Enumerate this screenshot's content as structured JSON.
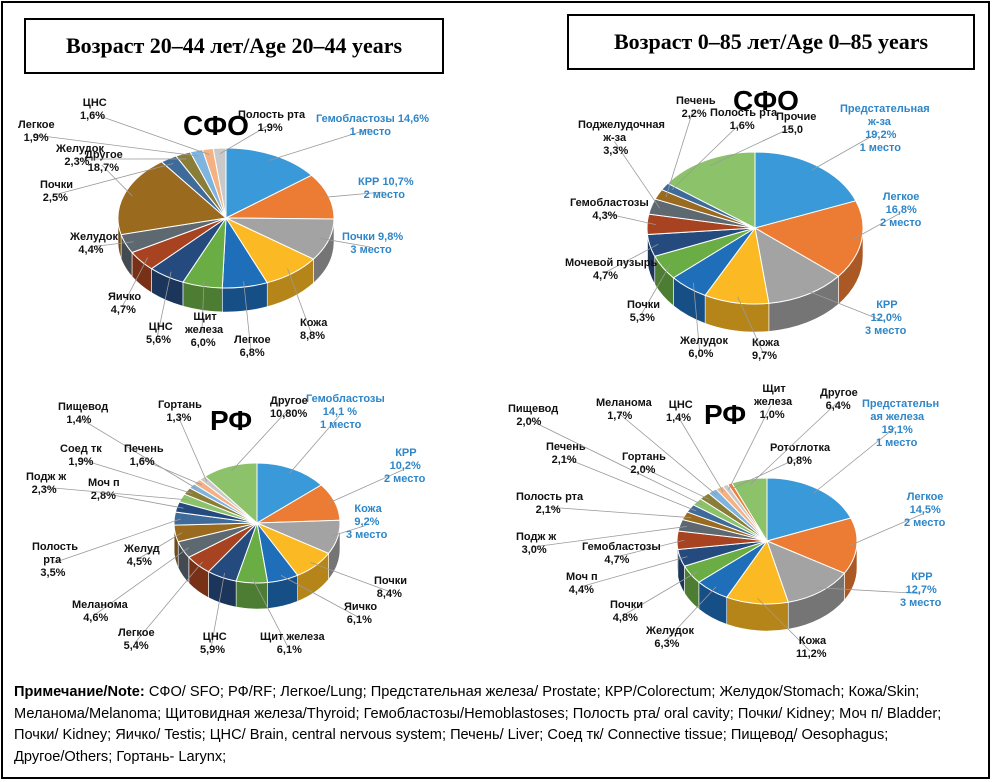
{
  "titles": {
    "left": "Возраст 20–44 лет/Age 20–44 years",
    "right": "Возраст 0–85 лет/Age 0–85 years"
  },
  "note": {
    "label": "Примечание/Note:",
    "text": " СФО/ SFO; РФ/RF; Легкое/Lung;  Предстательная железа/ Prostate; КРР/Colorectum; Желудок/Stomach; Кожа/Skin; Меланома/Melanoma; Щитовидная железа/Thyroid; Гемобластозы/Hemoblastoses; Полость рта/ oral cavity; Почки/ Kidney; Моч п/ Bladder; Почки/ Kidney; Яичко/ Testis; ЦНС/ Brain, central nervous system; Печень/ Liver; Соед тк/ Connective tissue;  Пищевод/ Oesophagus; Другое/Others; Гортань- Larynx;"
  },
  "colors": {
    "blue": "#3a99d8",
    "orange": "#ec7c34",
    "gray": "#a3a3a3",
    "yellow": "#fbb923",
    "darkblue": "#1f6eb9",
    "green": "#6bad45",
    "navy": "#254a7e",
    "brown": "#a74320",
    "slate": "#5d6870",
    "ochre": "#9a6a1f",
    "steel": "#3f6b9a",
    "lightgreen": "#8bc26a",
    "khaki": "#8a7d38",
    "lightblue": "#7fb4de",
    "peach": "#f4b183",
    "lightgray": "#c9c9c9",
    "label_blue": "#2e86c8"
  },
  "chart_data": [
    {
      "type": "pie",
      "title": "СФО",
      "subtitle": "Возраст 20–44 лет/Age 20–44 years",
      "slices": [
        {
          "name": "Гемобластозы",
          "value": 14.6,
          "color": "blue",
          "lines": [
            "Гемобластозы  14,6%",
            "1 место"
          ],
          "highlight": true
        },
        {
          "name": "КРР",
          "value": 10.7,
          "color": "orange",
          "lines": [
            "КРР 10,7%",
            "2 место"
          ],
          "highlight": true
        },
        {
          "name": "Почки",
          "value": 9.8,
          "color": "gray",
          "lines": [
            "Почки 9,8%",
            "3 место"
          ],
          "highlight": true
        },
        {
          "name": "Кожа",
          "value": 8.8,
          "color": "yellow",
          "lines": [
            "Кожа",
            "8,8%"
          ]
        },
        {
          "name": "Легкое",
          "value": 6.8,
          "color": "darkblue",
          "lines": [
            "Легкое",
            "6,8%"
          ]
        },
        {
          "name": "Щит железа",
          "value": 6.0,
          "color": "green",
          "lines": [
            "Щит",
            "железа",
            "6,0%"
          ]
        },
        {
          "name": "ЦНС",
          "value": 5.6,
          "color": "navy",
          "lines": [
            "ЦНС",
            "5,6%"
          ]
        },
        {
          "name": "Яичко",
          "value": 4.7,
          "color": "brown",
          "lines": [
            "Яичко",
            "4,7%"
          ]
        },
        {
          "name": "Желудок",
          "value": 4.4,
          "color": "slate",
          "lines": [
            "Желудок",
            "4,4%"
          ]
        },
        {
          "name": "Другое",
          "value": 18.7,
          "color": "ochre",
          "lines": [
            "Другое",
            "18,7%"
          ]
        },
        {
          "name": "Почки",
          "value": 2.5,
          "color": "steel",
          "lines": [
            "Почки",
            "2,5%"
          ]
        },
        {
          "name": "Желудок",
          "value": 2.3,
          "color": "khaki",
          "lines": [
            "Желудок",
            "2,3%"
          ]
        },
        {
          "name": "Легкое",
          "value": 1.9,
          "color": "lightblue",
          "lines": [
            "Легкое",
            "1,9%"
          ]
        },
        {
          "name": "ЦНС",
          "value": 1.6,
          "color": "peach",
          "lines": [
            "ЦНС",
            "1,6%"
          ]
        },
        {
          "name": "Полость рта",
          "value": 1.9,
          "color": "lightgray",
          "lines": [
            "Полость рта",
            "1,9%"
          ]
        }
      ]
    },
    {
      "type": "pie",
      "title": "СФО",
      "subtitle": "Возраст 0–85 лет/Age 0–85 years",
      "slices": [
        {
          "name": "Предстательная ж-за",
          "value": 19.2,
          "color": "blue",
          "lines": [
            "Предстательная",
            "ж-за",
            "19,2%",
            "1 место"
          ],
          "highlight": true
        },
        {
          "name": "Легкое",
          "value": 16.8,
          "color": "orange",
          "lines": [
            "Легкое",
            "16,8%",
            "2 место"
          ],
          "highlight": true
        },
        {
          "name": "КРР",
          "value": 12.0,
          "color": "gray",
          "lines": [
            "КРР",
            "12,0%",
            "3 место"
          ],
          "highlight": true
        },
        {
          "name": "Кожа",
          "value": 9.7,
          "color": "yellow",
          "lines": [
            "Кожа",
            "9,7%"
          ]
        },
        {
          "name": "Желудок",
          "value": 6.0,
          "color": "darkblue",
          "lines": [
            "Желудок",
            "6,0%"
          ]
        },
        {
          "name": "Почки",
          "value": 5.3,
          "color": "green",
          "lines": [
            "Почки",
            "5,3%"
          ]
        },
        {
          "name": "Мочевой пузырь",
          "value": 4.7,
          "color": "navy",
          "lines": [
            "Мочевой пузырь",
            "4,7%"
          ]
        },
        {
          "name": "Гемобластозы",
          "value": 4.3,
          "color": "brown",
          "lines": [
            "Гемобластозы",
            "4,3%"
          ]
        },
        {
          "name": "Поджелудочная ж-за",
          "value": 3.3,
          "color": "slate",
          "lines": [
            "Поджелудочная",
            "ж-за",
            "3,3%"
          ]
        },
        {
          "name": "Печень",
          "value": 2.2,
          "color": "ochre",
          "lines": [
            "Печень",
            "2,2%"
          ]
        },
        {
          "name": "Полость рта",
          "value": 1.6,
          "color": "steel",
          "lines": [
            "Полость рта",
            "1,6%"
          ]
        },
        {
          "name": "Прочие",
          "value": 15.0,
          "color": "lightgreen",
          "lines": [
            "Прочие",
            "15,0"
          ]
        }
      ]
    },
    {
      "type": "pie",
      "title": "РФ",
      "subtitle": "Возраст 20–44 лет/Age 20–44 years",
      "slices": [
        {
          "name": "Гемобластозы",
          "value": 14.1,
          "color": "blue",
          "lines": [
            "Гемобластозы",
            "14,1 %",
            "1 место"
          ],
          "highlight": true
        },
        {
          "name": "КРР",
          "value": 10.2,
          "color": "orange",
          "lines": [
            "КРР",
            "10,2%",
            "2 место"
          ],
          "highlight": true
        },
        {
          "name": "Кожа",
          "value": 9.2,
          "color": "gray",
          "lines": [
            "Кожа",
            "9,2%",
            "3 место"
          ],
          "highlight": true
        },
        {
          "name": "Почки",
          "value": 8.4,
          "color": "yellow",
          "lines": [
            "Почки",
            "8,4%"
          ]
        },
        {
          "name": "Яичко",
          "value": 6.1,
          "color": "darkblue",
          "lines": [
            "Яичко",
            "6,1%"
          ]
        },
        {
          "name": "Щит железа",
          "value": 6.1,
          "color": "green",
          "lines": [
            "Щит железа",
            "6,1%"
          ]
        },
        {
          "name": "ЦНС",
          "value": 5.9,
          "color": "navy",
          "lines": [
            "ЦНС",
            "5,9%"
          ]
        },
        {
          "name": "Легкое",
          "value": 5.4,
          "color": "brown",
          "lines": [
            "Легкое",
            "5,4%"
          ]
        },
        {
          "name": "Меланома",
          "value": 4.6,
          "color": "slate",
          "lines": [
            "Меланома",
            "4,6%"
          ]
        },
        {
          "name": "Желуд",
          "value": 4.5,
          "color": "ochre",
          "lines": [
            "Желуд",
            "4,5%"
          ]
        },
        {
          "name": "Полость рта",
          "value": 3.5,
          "color": "steel",
          "lines": [
            "Полость",
            "рта",
            "3,5%"
          ]
        },
        {
          "name": "Моч п",
          "value": 2.8,
          "color": "navy",
          "lines": [
            "Моч п",
            "2,8%"
          ]
        },
        {
          "name": "Подж ж",
          "value": 2.3,
          "color": "lightgreen",
          "lines": [
            "Подж ж",
            "2,3%"
          ]
        },
        {
          "name": "Соед тк",
          "value": 1.9,
          "color": "khaki",
          "lines": [
            "Соед тк",
            "1,9%"
          ]
        },
        {
          "name": "Пищевод",
          "value": 1.4,
          "color": "lightblue",
          "lines": [
            "Пищевод",
            "1,4%"
          ]
        },
        {
          "name": "Печень",
          "value": 1.6,
          "color": "peach",
          "lines": [
            "Печень",
            "1,6%"
          ]
        },
        {
          "name": "Гортань",
          "value": 1.3,
          "color": "lightgray",
          "lines": [
            "Гортань",
            "1,3%"
          ]
        },
        {
          "name": "Другое",
          "value": 10.8,
          "color": "lightgreen",
          "lines": [
            "Другое",
            "10,80%"
          ]
        }
      ]
    },
    {
      "type": "pie",
      "title": "РФ",
      "subtitle": "Возраст 0–85 лет/Age 0–85 years",
      "slices": [
        {
          "name": "Предстательная железа",
          "value": 19.1,
          "color": "blue",
          "lines": [
            "Предстательн",
            "ая железа",
            "19,1%",
            "1 место"
          ],
          "highlight": true
        },
        {
          "name": "Легкое",
          "value": 14.5,
          "color": "orange",
          "lines": [
            "Легкое",
            "14,5%",
            "2 место"
          ],
          "highlight": true
        },
        {
          "name": "КРР",
          "value": 12.7,
          "color": "gray",
          "lines": [
            "КРР",
            "12,7%",
            "3 место"
          ],
          "highlight": true
        },
        {
          "name": "Кожа",
          "value": 11.2,
          "color": "yellow",
          "lines": [
            "Кожа",
            "11,2%"
          ]
        },
        {
          "name": "Желудок",
          "value": 6.3,
          "color": "darkblue",
          "lines": [
            "Желудок",
            "6,3%"
          ]
        },
        {
          "name": "Почки",
          "value": 4.8,
          "color": "green",
          "lines": [
            "Почки",
            "4,8%"
          ]
        },
        {
          "name": "Моч п",
          "value": 4.4,
          "color": "navy",
          "lines": [
            "Моч п",
            "4,4%"
          ]
        },
        {
          "name": "Гемобластозы",
          "value": 4.7,
          "color": "brown",
          "lines": [
            "Гемобластозы",
            "4,7%"
          ]
        },
        {
          "name": "Подж ж",
          "value": 3.0,
          "color": "slate",
          "lines": [
            "Подж ж",
            "3,0%"
          ]
        },
        {
          "name": "Полость рта",
          "value": 2.1,
          "color": "ochre",
          "lines": [
            "Полость рта",
            "2,1%"
          ]
        },
        {
          "name": "Печень",
          "value": 2.1,
          "color": "steel",
          "lines": [
            "Печень",
            "2,1%"
          ]
        },
        {
          "name": "Пищевод",
          "value": 2.0,
          "color": "lightgreen",
          "lines": [
            "Пищевод",
            "2,0%"
          ]
        },
        {
          "name": "Гортань",
          "value": 2.0,
          "color": "khaki",
          "lines": [
            "Гортань",
            "2,0%"
          ]
        },
        {
          "name": "Меланома",
          "value": 1.7,
          "color": "lightblue",
          "lines": [
            "Меланома",
            "1,7%"
          ]
        },
        {
          "name": "ЦНС",
          "value": 1.4,
          "color": "peach",
          "lines": [
            "ЦНС",
            "1,4%"
          ]
        },
        {
          "name": "Щит железа",
          "value": 1.0,
          "color": "lightgray",
          "lines": [
            "Щит",
            "железа",
            "1,0%"
          ]
        },
        {
          "name": "Ротоглотка",
          "value": 0.8,
          "color": "orange",
          "lines": [
            "Ротоглотка",
            "0,8%"
          ]
        },
        {
          "name": "Другое",
          "value": 6.4,
          "color": "lightgreen",
          "lines": [
            "Другое",
            "6,4%"
          ]
        }
      ]
    }
  ]
}
